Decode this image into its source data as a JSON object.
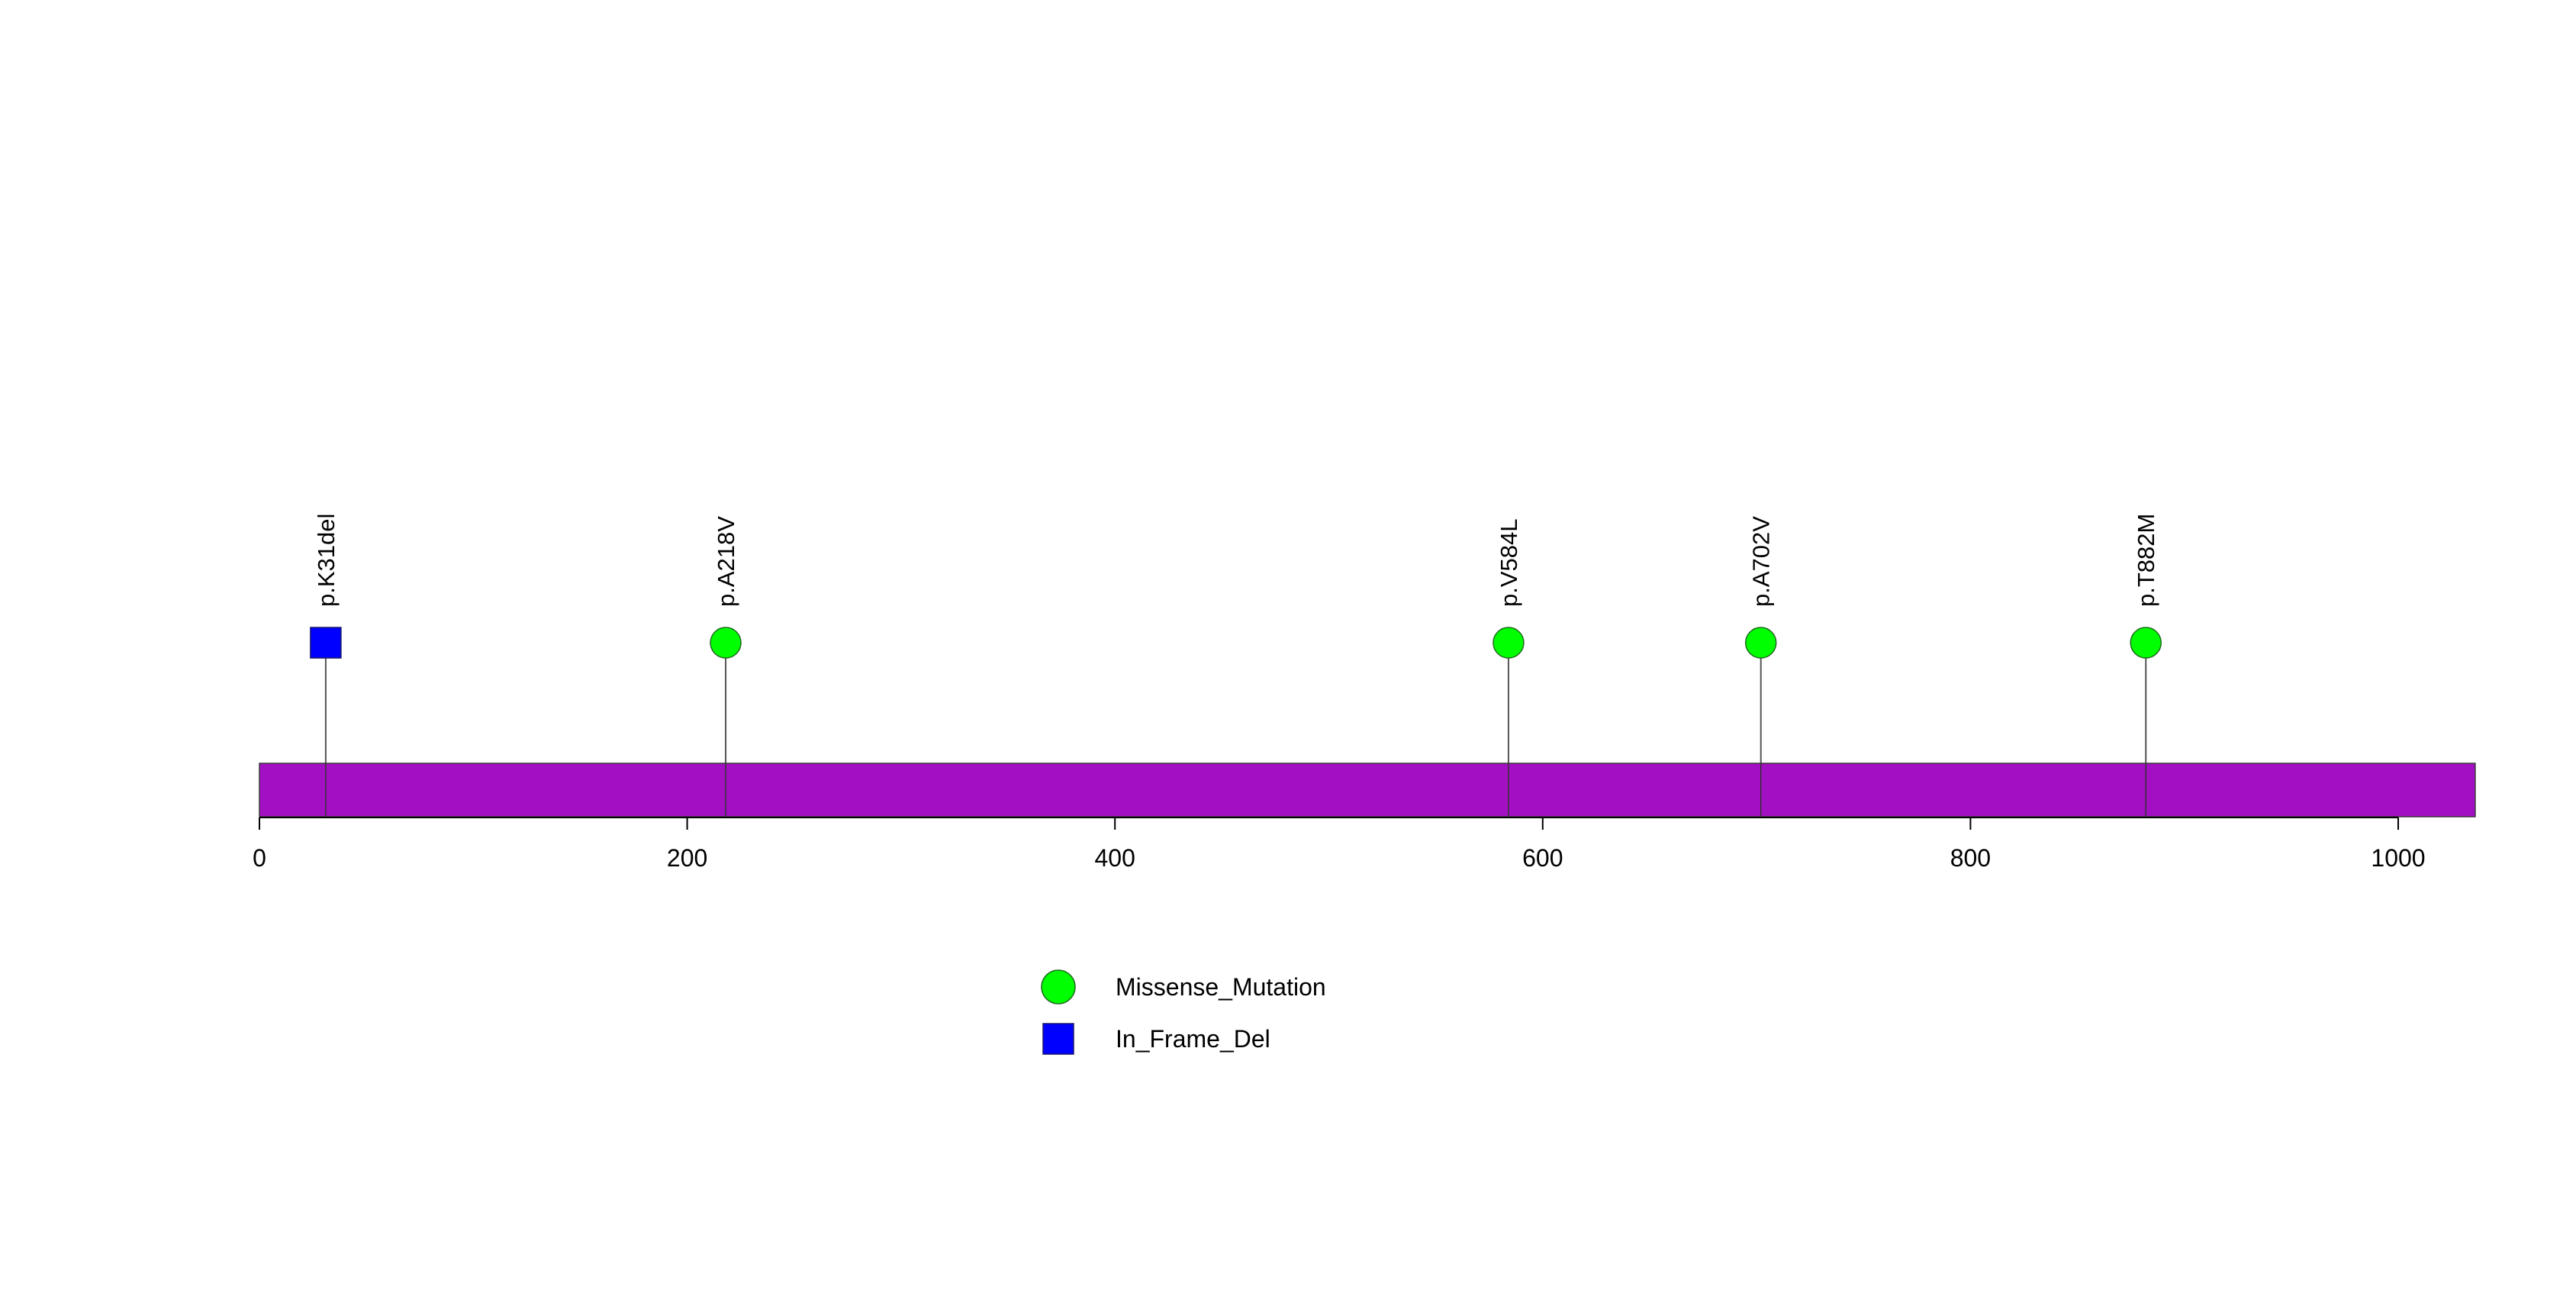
{
  "chart_data": {
    "type": "scatter",
    "xlim": [
      0,
      1036
    ],
    "ticks": [
      0,
      200,
      400,
      600,
      800,
      1000
    ],
    "tick_labels": [
      "0",
      "200",
      "400",
      "600",
      "800",
      "1000"
    ],
    "protein_bar_color": "#A30FC2",
    "mutations": [
      {
        "label": "p.K31del",
        "position": 31,
        "type": "In_Frame_Del"
      },
      {
        "label": "p.A218V",
        "position": 218,
        "type": "Missense_Mutation"
      },
      {
        "label": "p.V584L",
        "position": 584,
        "type": "Missense_Mutation"
      },
      {
        "label": "p.A702V",
        "position": 702,
        "type": "Missense_Mutation"
      },
      {
        "label": "p.T882M",
        "position": 882,
        "type": "Missense_Mutation"
      }
    ],
    "legend": [
      {
        "label": "Missense_Mutation",
        "shape": "circle",
        "color": "#00FF00"
      },
      {
        "label": "In_Frame_Del",
        "shape": "square",
        "color": "#0000FF"
      }
    ],
    "legend_placement": "bottom-center"
  }
}
